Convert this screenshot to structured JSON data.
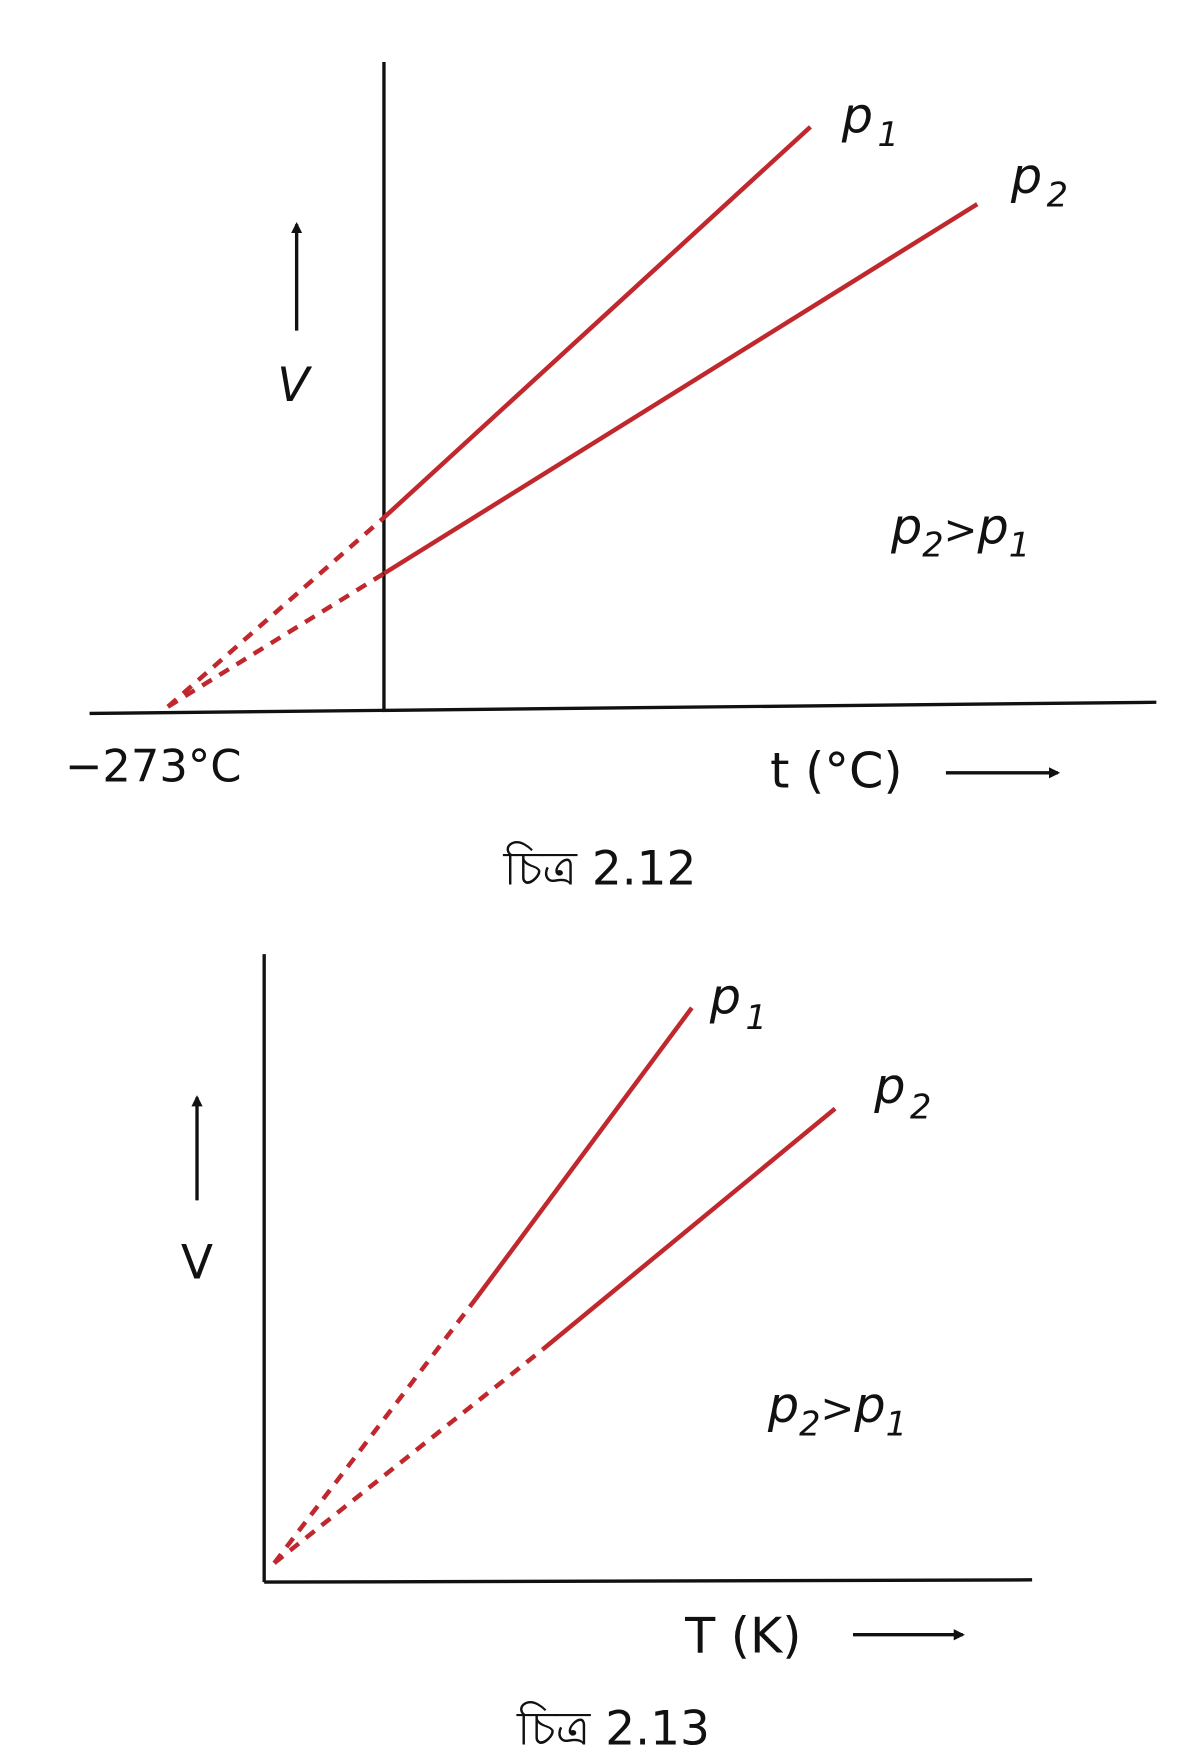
{
  "figures": [
    {
      "y_axis_label": "V",
      "x_axis_label": "t (°C)",
      "intercept_label": "−273°C",
      "lines": [
        {
          "label": {
            "text": "p",
            "sub": "1"
          }
        },
        {
          "label": {
            "text": "p",
            "sub": "2"
          }
        }
      ],
      "relation": {
        "left": {
          "text": "p",
          "sub": "2"
        },
        "op": ">",
        "right": {
          "text": "p",
          "sub": "1"
        }
      },
      "caption": "চিত্র 2.12"
    },
    {
      "y_axis_label": "V",
      "x_axis_label": "T (K)",
      "lines": [
        {
          "label": {
            "text": "p",
            "sub": "1"
          }
        },
        {
          "label": {
            "text": "p",
            "sub": "2"
          }
        }
      ],
      "relation": {
        "left": {
          "text": "p",
          "sub": "2"
        },
        "op": ">",
        "right": {
          "text": "p",
          "sub": "1"
        }
      },
      "caption": "চিত্র 2.13"
    }
  ]
}
